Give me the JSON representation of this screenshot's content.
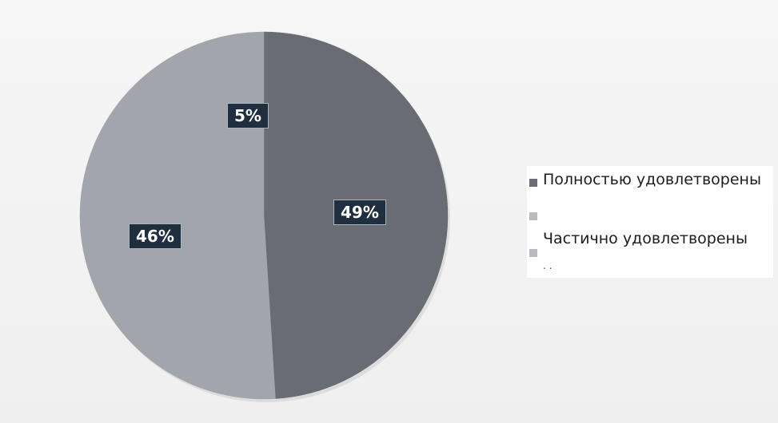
{
  "chart_data": {
    "type": "pie",
    "slices": [
      {
        "label": "Полностью удовлетворены",
        "value": 49,
        "display": "49%",
        "color": "#6a6c74"
      },
      {
        "label": "Частично удовлетворены",
        "value": 46,
        "display": "46%",
        "color": "#a3a5ac"
      },
      {
        "label": "",
        "value": 5,
        "display": "5%",
        "color": "#a3a5ac"
      }
    ],
    "legend": {
      "placement": "right",
      "entries": [
        {
          "text": "Полностью удовлетворены",
          "color": "#6a6c74"
        },
        {
          "text": "",
          "color": "#b9bbc0"
        },
        {
          "text": "Частично удовлетворены",
          "color": "#b9bbc0"
        }
      ],
      "overflow_text": ". ."
    }
  }
}
